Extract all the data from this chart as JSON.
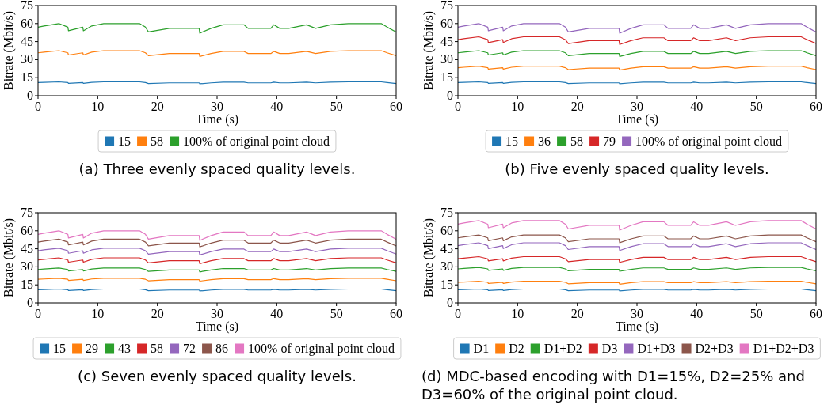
{
  "chart_data": [
    {
      "type": "line",
      "xlabel": "Time (s)",
      "ylabel": "Bitrate (Mbit/s)",
      "xlim": [
        0,
        60
      ],
      "ylim": [
        0,
        75
      ],
      "xticks": [
        0,
        10,
        20,
        30,
        40,
        50,
        60
      ],
      "yticks": [
        0,
        15,
        30,
        45,
        60,
        75
      ],
      "grid": false,
      "legend": "bottom",
      "annotations": [
        "(a) Three evenly spaced quality levels."
      ],
      "x": [
        0,
        1,
        3.5,
        5,
        5.1,
        7.5,
        7.6,
        9,
        11,
        14,
        17,
        18,
        18.5,
        22,
        27,
        27.1,
        29,
        31,
        34.5,
        35.2,
        39,
        39.5,
        40.5,
        42,
        45,
        46.5,
        49,
        52,
        57.5,
        58.5,
        60
      ],
      "series": [
        {
          "name": "15",
          "color": "#1f77b4",
          "values": [
            10.9,
            11.1,
            11.5,
            10.9,
            10.3,
            10.9,
            10.3,
            11.1,
            11.5,
            11.5,
            11.5,
            10.9,
            10.1,
            10.7,
            10.7,
            9.9,
            10.7,
            11.3,
            11.3,
            10.7,
            10.7,
            11.3,
            10.7,
            10.7,
            11.3,
            10.7,
            11.3,
            11.5,
            11.5,
            10.9,
            10.1
          ]
        },
        {
          "name": "58",
          "color": "#ff7f0e",
          "values": [
            35.7,
            36.3,
            37.5,
            35.7,
            33.9,
            35.7,
            33.9,
            36.3,
            37.5,
            37.5,
            37.5,
            35.7,
            33.3,
            35.1,
            35.1,
            32.7,
            35.1,
            36.9,
            36.9,
            35.1,
            35.1,
            36.9,
            35.1,
            35.1,
            36.9,
            35.1,
            36.9,
            37.5,
            37.5,
            35.7,
            33.3
          ]
        },
        {
          "name": "100% of original point cloud",
          "color": "#2ca02c",
          "values": [
            57,
            58,
            60,
            57,
            54,
            57,
            54,
            58,
            60,
            60,
            60,
            57,
            53,
            56,
            56,
            52,
            56,
            59,
            59,
            56,
            56,
            59,
            56,
            56,
            59,
            56,
            59,
            60,
            60,
            57,
            53
          ]
        }
      ]
    },
    {
      "type": "line",
      "xlabel": "Time (s)",
      "ylabel": "Bitrate (Mbit/s)",
      "xlim": [
        0,
        60
      ],
      "ylim": [
        0,
        75
      ],
      "xticks": [
        0,
        10,
        20,
        30,
        40,
        50,
        60
      ],
      "yticks": [
        0,
        15,
        30,
        45,
        60,
        75
      ],
      "grid": false,
      "legend": "bottom",
      "annotations": [
        "(b) Five evenly spaced quality levels."
      ],
      "x": [
        0,
        1,
        3.5,
        5,
        5.1,
        7.5,
        7.6,
        9,
        11,
        14,
        17,
        18,
        18.5,
        22,
        27,
        27.1,
        29,
        31,
        34.5,
        35.2,
        39,
        39.5,
        40.5,
        42,
        45,
        46.5,
        49,
        52,
        57.5,
        58.5,
        60
      ],
      "series": [
        {
          "name": "15",
          "color": "#1f77b4",
          "values": [
            10.9,
            11.1,
            11.5,
            10.9,
            10.3,
            10.9,
            10.3,
            11.1,
            11.5,
            11.5,
            11.5,
            10.9,
            10.1,
            10.7,
            10.7,
            9.9,
            10.7,
            11.3,
            11.3,
            10.7,
            10.7,
            11.3,
            10.7,
            10.7,
            11.3,
            10.7,
            11.3,
            11.5,
            11.5,
            10.9,
            10.1
          ]
        },
        {
          "name": "36",
          "color": "#ff7f0e",
          "values": [
            23.3,
            23.7,
            24.5,
            23.3,
            22.1,
            23.3,
            22.1,
            23.7,
            24.5,
            24.5,
            24.5,
            23.3,
            21.7,
            22.9,
            22.9,
            21.3,
            22.9,
            24.1,
            24.1,
            22.9,
            22.9,
            24.1,
            22.9,
            22.9,
            24.1,
            22.9,
            24.1,
            24.5,
            24.5,
            23.3,
            21.7
          ]
        },
        {
          "name": "58",
          "color": "#2ca02c",
          "values": [
            35.7,
            36.3,
            37.5,
            35.7,
            33.9,
            35.7,
            33.9,
            36.3,
            37.5,
            37.5,
            37.5,
            35.7,
            33.3,
            35.1,
            35.1,
            32.7,
            35.1,
            36.9,
            36.9,
            35.1,
            35.1,
            36.9,
            35.1,
            35.1,
            36.9,
            35.1,
            36.9,
            37.5,
            37.5,
            35.7,
            33.3
          ]
        },
        {
          "name": "79",
          "color": "#d62728",
          "values": [
            46.6,
            47.4,
            49,
            46.6,
            44.2,
            46.6,
            44.2,
            47.4,
            49,
            49,
            49,
            46.6,
            43.4,
            45.8,
            45.8,
            42.6,
            45.8,
            48.2,
            48.2,
            45.8,
            45.8,
            48.2,
            45.8,
            45.8,
            48.2,
            45.8,
            48.2,
            49,
            49,
            46.6,
            43.4
          ]
        },
        {
          "name": "100% of original point cloud",
          "color": "#9467bd",
          "values": [
            57,
            58,
            60,
            57,
            54,
            57,
            54,
            58,
            60,
            60,
            60,
            57,
            53,
            56,
            56,
            52,
            56,
            59,
            59,
            56,
            56,
            59,
            56,
            56,
            59,
            56,
            59,
            60,
            60,
            57,
            53
          ]
        }
      ]
    },
    {
      "type": "line",
      "xlabel": "Time (s)",
      "ylabel": "Bitrate (Mbit/s)",
      "xlim": [
        0,
        60
      ],
      "ylim": [
        0,
        75
      ],
      "xticks": [
        0,
        10,
        20,
        30,
        40,
        50,
        60
      ],
      "yticks": [
        0,
        15,
        30,
        45,
        60,
        75
      ],
      "grid": false,
      "legend": "bottom",
      "annotations": [
        "(c) Seven evenly spaced quality levels."
      ],
      "x": [
        0,
        1,
        3.5,
        5,
        5.1,
        7.5,
        7.6,
        9,
        11,
        14,
        17,
        18,
        18.5,
        22,
        27,
        27.1,
        29,
        31,
        34.5,
        35.2,
        39,
        39.5,
        40.5,
        42,
        45,
        46.5,
        49,
        52,
        57.5,
        58.5,
        60
      ],
      "series": [
        {
          "name": "15",
          "color": "#1f77b4",
          "values": [
            10.9,
            11.1,
            11.5,
            10.9,
            10.3,
            10.9,
            10.3,
            11.1,
            11.5,
            11.5,
            11.5,
            10.9,
            10.1,
            10.7,
            10.7,
            9.9,
            10.7,
            11.3,
            11.3,
            10.7,
            10.7,
            11.3,
            10.7,
            10.7,
            11.3,
            10.7,
            11.3,
            11.5,
            11.5,
            10.9,
            10.1
          ]
        },
        {
          "name": "29",
          "color": "#ff7f0e",
          "values": [
            19.6,
            19.9,
            20.5,
            19.6,
            18.7,
            19.6,
            18.7,
            19.9,
            20.5,
            20.5,
            20.5,
            19.6,
            18.4,
            19.3,
            19.3,
            18.1,
            19.3,
            20.2,
            20.2,
            19.3,
            19.3,
            20.2,
            19.3,
            19.3,
            20.2,
            19.3,
            20.2,
            20.5,
            20.5,
            19.6,
            18.4
          ]
        },
        {
          "name": "43",
          "color": "#2ca02c",
          "values": [
            27.8,
            28.2,
            29,
            27.8,
            26.6,
            27.8,
            26.6,
            28.2,
            29,
            29,
            29,
            27.8,
            26.2,
            27.4,
            27.4,
            25.8,
            27.4,
            28.6,
            28.6,
            27.4,
            27.4,
            28.6,
            27.4,
            27.4,
            28.6,
            27.4,
            28.6,
            29,
            29,
            27.8,
            26.2
          ]
        },
        {
          "name": "58",
          "color": "#d62728",
          "values": [
            35.7,
            36.3,
            37.5,
            35.7,
            33.9,
            35.7,
            33.9,
            36.3,
            37.5,
            37.5,
            37.5,
            35.7,
            33.3,
            35.1,
            35.1,
            32.7,
            35.1,
            36.9,
            36.9,
            35.1,
            35.1,
            36.9,
            35.1,
            35.1,
            36.9,
            35.1,
            36.9,
            37.5,
            37.5,
            35.7,
            33.3
          ]
        },
        {
          "name": "72",
          "color": "#9467bd",
          "values": [
            43.4,
            44.1,
            45.5,
            43.4,
            41.3,
            43.4,
            41.3,
            44.1,
            45.5,
            45.5,
            45.5,
            43.4,
            40.6,
            42.7,
            42.7,
            39.9,
            42.7,
            44.8,
            44.8,
            42.7,
            42.7,
            44.8,
            42.7,
            42.7,
            44.8,
            42.7,
            44.8,
            45.5,
            45.5,
            43.4,
            40.6
          ]
        },
        {
          "name": "86",
          "color": "#8c564b",
          "values": [
            50.6,
            51.4,
            53,
            50.6,
            48.2,
            50.6,
            48.2,
            51.4,
            53,
            53,
            53,
            50.6,
            47.4,
            49.8,
            49.8,
            46.6,
            49.8,
            52.2,
            52.2,
            49.8,
            49.8,
            52.2,
            49.8,
            49.8,
            52.2,
            49.8,
            52.2,
            53,
            53,
            50.6,
            47.4
          ]
        },
        {
          "name": "100% of original point cloud",
          "color": "#e377c2",
          "values": [
            57,
            58,
            60,
            57,
            54,
            57,
            54,
            58,
            60,
            60,
            60,
            57,
            53,
            56,
            56,
            52,
            56,
            59,
            59,
            56,
            56,
            59,
            56,
            56,
            59,
            56,
            59,
            60,
            60,
            57,
            53
          ]
        }
      ]
    },
    {
      "type": "line",
      "xlabel": "Time (s)",
      "ylabel": "Bitrate (Mbit/s)",
      "xlim": [
        0,
        60
      ],
      "ylim": [
        0,
        75
      ],
      "xticks": [
        0,
        10,
        20,
        30,
        40,
        50,
        60
      ],
      "yticks": [
        0,
        15,
        30,
        45,
        60,
        75
      ],
      "grid": false,
      "legend": "bottom",
      "annotations": [
        "(d) MDC-based encoding with D1=15%, D2=25% and D3=60% of the original point cloud."
      ],
      "x": [
        0,
        1,
        3.5,
        5,
        5.1,
        7.5,
        7.6,
        9,
        11,
        14,
        17,
        18,
        18.5,
        22,
        27,
        27.1,
        29,
        31,
        34.5,
        35.2,
        39,
        39.5,
        40.5,
        42,
        45,
        46.5,
        49,
        52,
        57.5,
        58.5,
        60
      ],
      "series": [
        {
          "name": "D1",
          "color": "#1f77b4",
          "values": [
            10.9,
            11.1,
            11.5,
            10.9,
            10.3,
            10.9,
            10.3,
            11.1,
            11.5,
            11.5,
            11.5,
            10.9,
            10.1,
            10.7,
            10.7,
            9.9,
            10.7,
            11.3,
            11.3,
            10.7,
            10.7,
            11.3,
            10.7,
            10.7,
            11.3,
            10.7,
            11.3,
            11.5,
            11.5,
            10.9,
            10.1
          ]
        },
        {
          "name": "D2",
          "color": "#ff7f0e",
          "values": [
            17.1,
            17.4,
            18,
            17.1,
            16.2,
            17.1,
            16.2,
            17.4,
            18,
            18,
            18,
            17.1,
            15.9,
            16.8,
            16.8,
            15.6,
            16.8,
            17.7,
            17.7,
            16.8,
            16.8,
            17.7,
            16.8,
            16.8,
            17.7,
            16.8,
            17.7,
            18,
            18,
            17.1,
            15.9
          ]
        },
        {
          "name": "D1+D2",
          "color": "#2ca02c",
          "values": [
            28.3,
            28.7,
            29.5,
            28.3,
            27.1,
            28.3,
            27.1,
            28.7,
            29.5,
            29.5,
            29.5,
            28.3,
            26.7,
            27.9,
            27.9,
            26.3,
            27.9,
            29.1,
            29.1,
            27.9,
            27.9,
            29.1,
            27.9,
            27.9,
            29.1,
            27.9,
            29.1,
            29.5,
            29.5,
            28.3,
            26.7
          ]
        },
        {
          "name": "D3",
          "color": "#d62728",
          "values": [
            36.7,
            37.3,
            38.5,
            36.7,
            34.9,
            36.7,
            34.9,
            37.3,
            38.5,
            38.5,
            38.5,
            36.7,
            34.3,
            36.1,
            36.1,
            33.7,
            36.1,
            37.9,
            37.9,
            36.1,
            36.1,
            37.9,
            36.1,
            36.1,
            37.9,
            36.1,
            37.9,
            38.5,
            38.5,
            36.7,
            34.3
          ]
        },
        {
          "name": "D1+D3",
          "color": "#9467bd",
          "values": [
            47.6,
            48.4,
            50,
            47.6,
            45.2,
            47.6,
            45.2,
            48.4,
            50,
            50,
            50,
            47.6,
            44.4,
            46.8,
            46.8,
            43.6,
            46.8,
            49.2,
            49.2,
            46.8,
            46.8,
            49.2,
            46.8,
            46.8,
            49.2,
            46.8,
            49.2,
            50,
            50,
            47.6,
            44.4
          ]
        },
        {
          "name": "D2+D3",
          "color": "#8c564b",
          "values": [
            54.1,
            54.9,
            56.5,
            54.1,
            51.7,
            54.1,
            51.7,
            54.9,
            56.5,
            56.5,
            56.5,
            54.1,
            50.9,
            53.3,
            53.3,
            50.1,
            53.3,
            55.7,
            55.7,
            53.3,
            53.3,
            55.7,
            53.3,
            53.3,
            55.7,
            53.3,
            55.7,
            56.5,
            56.5,
            54.1,
            50.9
          ]
        },
        {
          "name": "D1+D2+D3",
          "color": "#e377c2",
          "values": [
            65.5,
            66.5,
            68.5,
            65.5,
            62.5,
            65.5,
            62.5,
            66.5,
            68.5,
            68.5,
            68.5,
            65.5,
            61.5,
            64.5,
            64.5,
            60.5,
            64.5,
            67.5,
            67.5,
            64.5,
            64.5,
            67.5,
            64.5,
            64.5,
            67.5,
            64.5,
            67.5,
            68.5,
            68.5,
            65.5,
            61.5
          ]
        }
      ]
    }
  ]
}
